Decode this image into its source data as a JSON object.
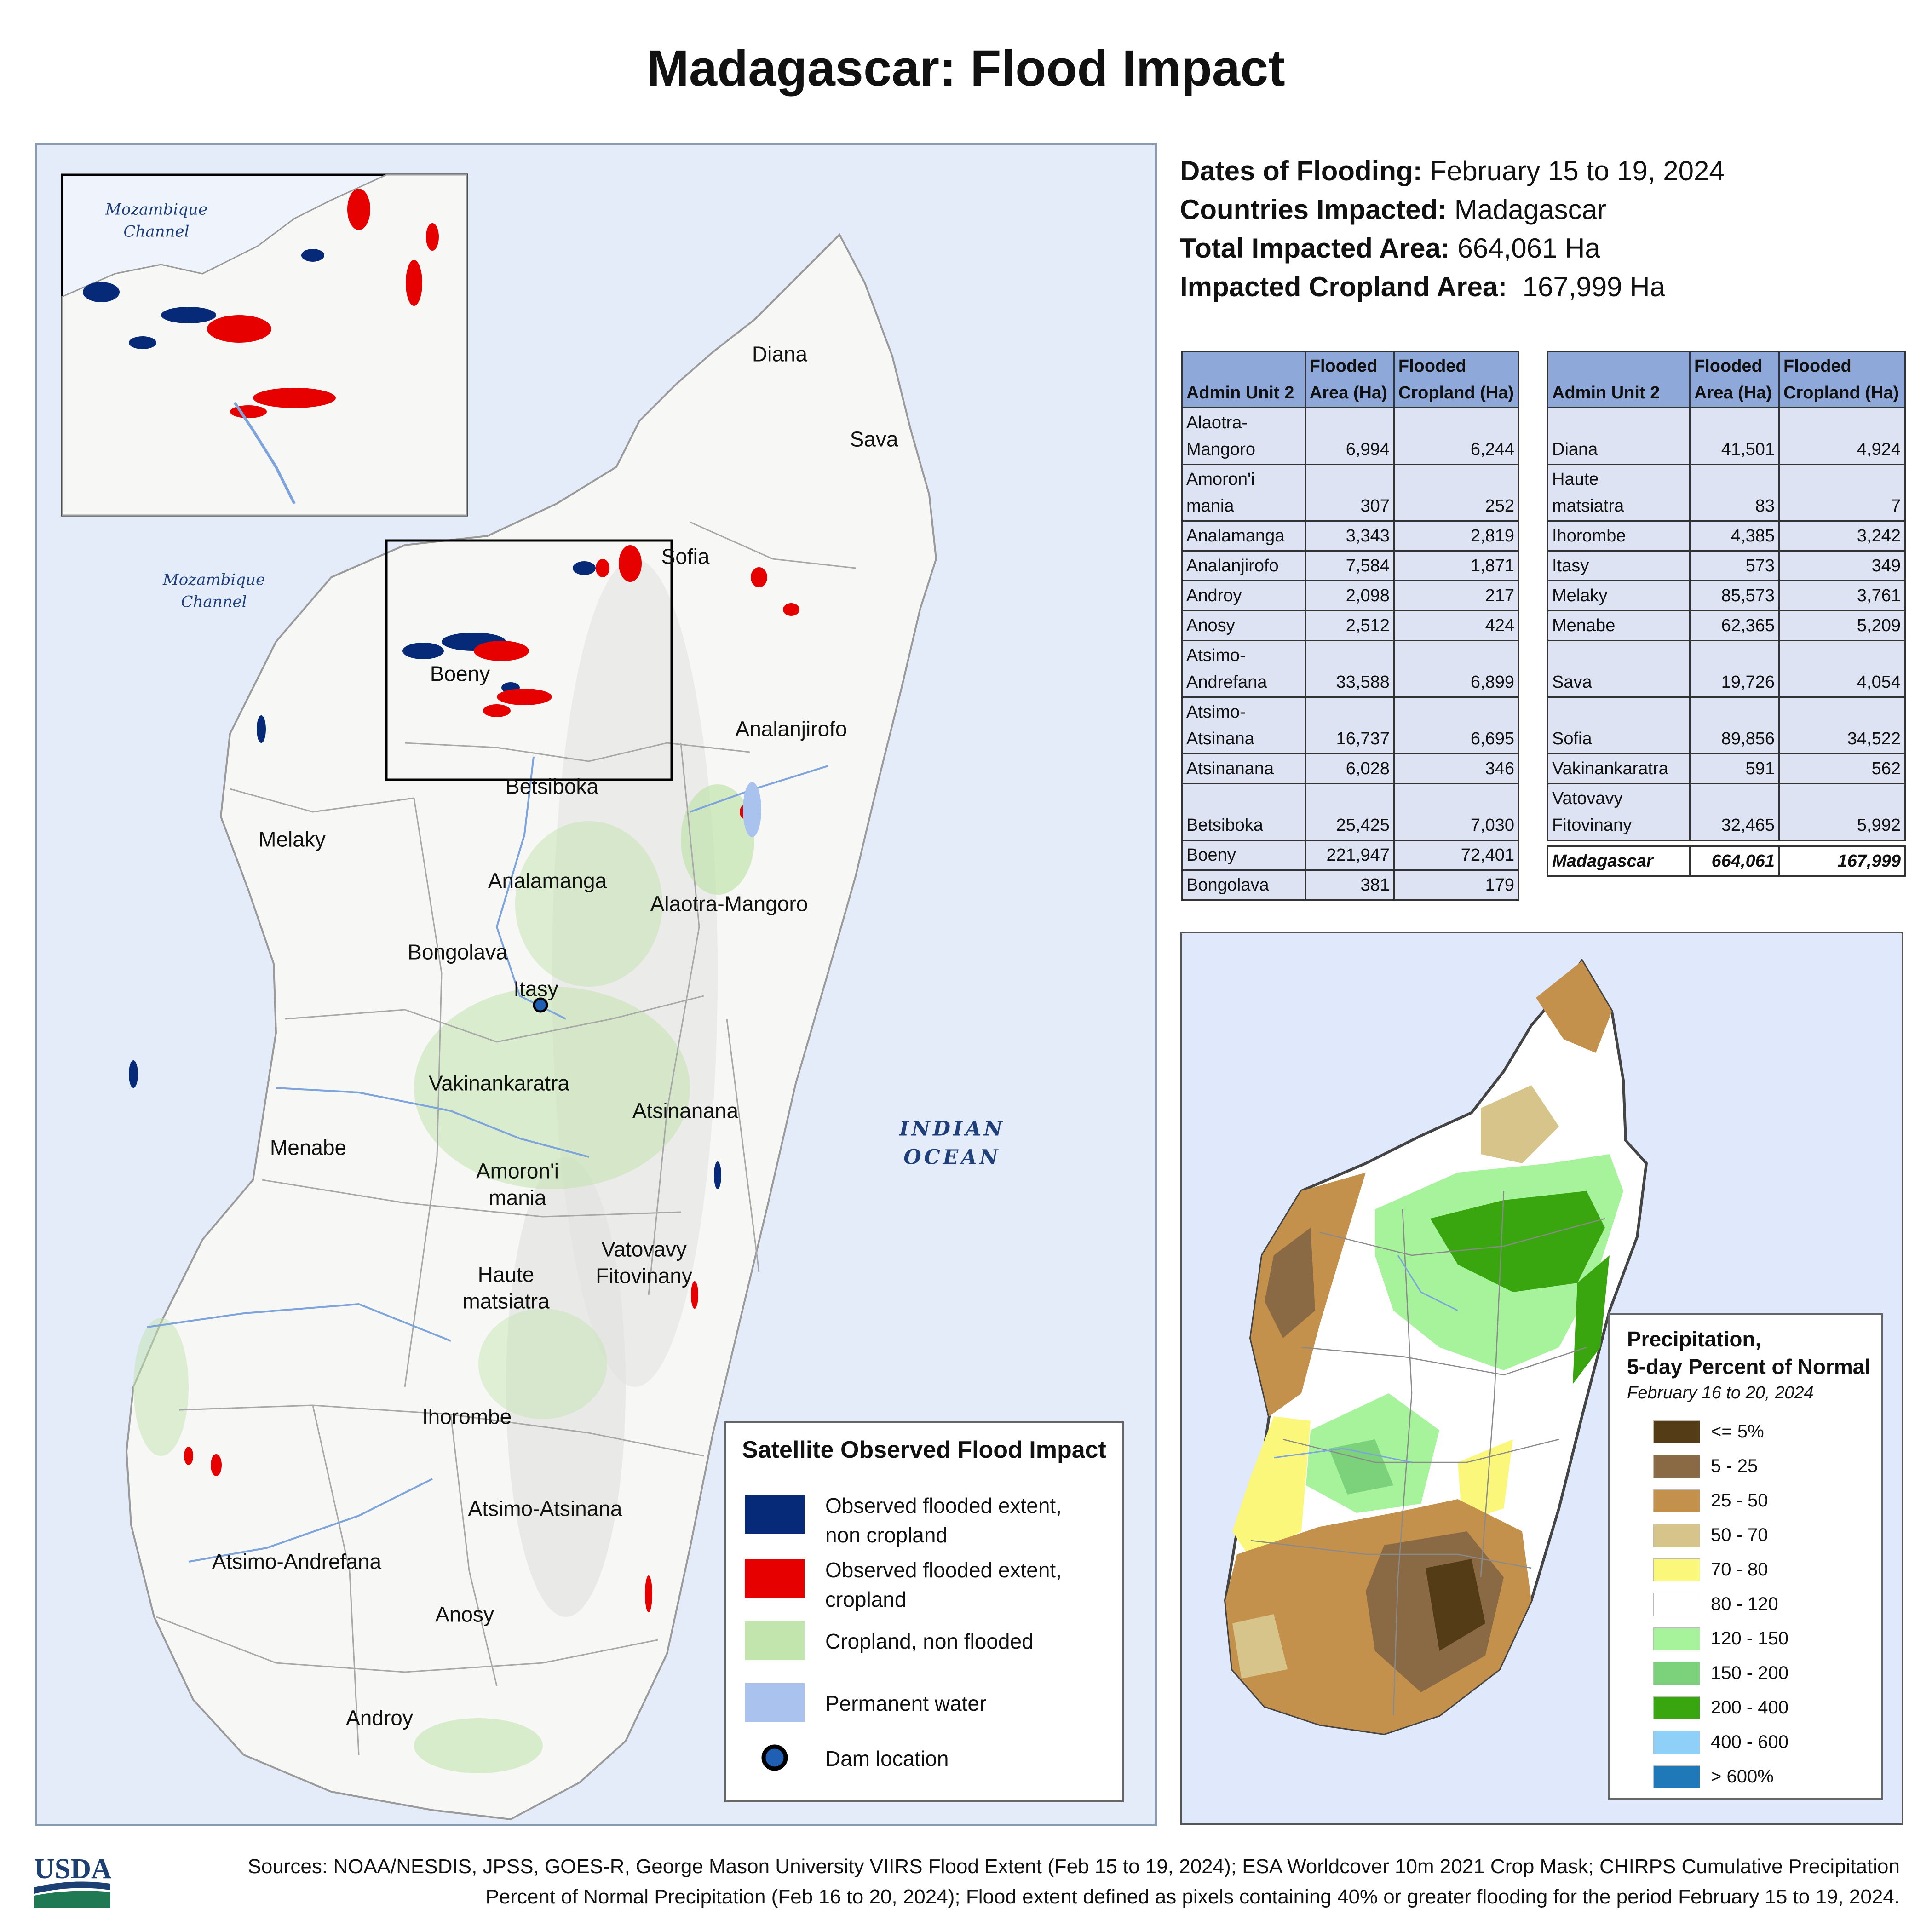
{
  "title": "Madagascar: Flood Impact",
  "info": {
    "dates_label": "Dates of Flooding:",
    "dates_value": "February 15 to 19, 2024",
    "countries_label": "Countries Impacted:",
    "countries_value": "Madagascar",
    "total_label": "Total Impacted Area:",
    "total_value": "664,061 Ha",
    "cropland_label": "Impacted Cropland Area:",
    "cropland_value": "167,999 Ha"
  },
  "table_headers": {
    "admin_unit": "Admin Unit 2",
    "flooded_area_1": "Flooded",
    "flooded_area_2": "Area (Ha)",
    "flooded_crop_1": "Flooded",
    "flooded_crop_2": "Cropland (Ha)"
  },
  "table_left": [
    {
      "name1": "Alaotra-",
      "name2": "Mangoro",
      "area": "6,994",
      "crop": "6,244"
    },
    {
      "name1": "Amoron'i",
      "name2": "mania",
      "area": "307",
      "crop": "252"
    },
    {
      "name1": "",
      "name2": "Analamanga",
      "area": "3,343",
      "crop": "2,819"
    },
    {
      "name1": "",
      "name2": "Analanjirofo",
      "area": "7,584",
      "crop": "1,871"
    },
    {
      "name1": "",
      "name2": "Androy",
      "area": "2,098",
      "crop": "217"
    },
    {
      "name1": "",
      "name2": "Anosy",
      "area": "2,512",
      "crop": "424"
    },
    {
      "name1": "Atsimo-",
      "name2": "Andrefana",
      "area": "33,588",
      "crop": "6,899"
    },
    {
      "name1": "Atsimo-",
      "name2": "Atsinana",
      "area": "16,737",
      "crop": "6,695"
    },
    {
      "name1": "",
      "name2": "Atsinanana",
      "area": "6,028",
      "crop": "346"
    },
    {
      "name1": " ",
      "name2": "Betsiboka",
      "area": "25,425",
      "crop": "7,030"
    },
    {
      "name1": "",
      "name2": "Boeny",
      "area": "221,947",
      "crop": "72,401"
    },
    {
      "name1": "",
      "name2": "Bongolava",
      "area": "381",
      "crop": "179"
    }
  ],
  "table_right": [
    {
      "name1": " ",
      "name2": "Diana",
      "area": "41,501",
      "crop": "4,924"
    },
    {
      "name1": "Haute",
      "name2": "matsiatra",
      "area": "83",
      "crop": "7"
    },
    {
      "name1": "",
      "name2": "Ihorombe",
      "area": "4,385",
      "crop": "3,242"
    },
    {
      "name1": "",
      "name2": "Itasy",
      "area": "573",
      "crop": "349"
    },
    {
      "name1": "",
      "name2": "Melaky",
      "area": "85,573",
      "crop": "3,761"
    },
    {
      "name1": "",
      "name2": "Menabe",
      "area": "62,365",
      "crop": "5,209"
    },
    {
      "name1": " ",
      "name2": "Sava",
      "area": "19,726",
      "crop": "4,054"
    },
    {
      "name1": " ",
      "name2": "Sofia",
      "area": "89,856",
      "crop": "34,522"
    },
    {
      "name1": "",
      "name2": "Vakinankaratra",
      "area": "591",
      "crop": "562"
    },
    {
      "name1": "Vatovavy",
      "name2": "Fitovinany",
      "area": "32,465",
      "crop": "5,992"
    }
  ],
  "table_total": {
    "name": "Madagascar",
    "area": "664,061",
    "crop": "167,999"
  },
  "map": {
    "ocean_label": "INDIAN OCEAN",
    "channel_label_1": "Mozambique",
    "channel_label_2": "Channel",
    "regions": [
      {
        "key": "diana",
        "text": "Diana"
      },
      {
        "key": "sava",
        "text": "Sava"
      },
      {
        "key": "sofia",
        "text": "Sofia"
      },
      {
        "key": "boeny",
        "text": "Boeny"
      },
      {
        "key": "analanjirofo",
        "text": "Analanjirofo"
      },
      {
        "key": "betsiboka",
        "text": "Betsiboka"
      },
      {
        "key": "melaky",
        "text": "Melaky"
      },
      {
        "key": "analamanga",
        "text": "Analamanga"
      },
      {
        "key": "alaotra",
        "text": "Alaotra-Mangoro"
      },
      {
        "key": "bongolava",
        "text": "Bongolava"
      },
      {
        "key": "itasy",
        "text": "Itasy"
      },
      {
        "key": "vakinankaratra",
        "text": "Vakinankaratra"
      },
      {
        "key": "atsinanana",
        "text": "Atsinanana"
      },
      {
        "key": "menabe",
        "text": "Menabe"
      },
      {
        "key": "amoroni",
        "text": "Amoron'i\nmania"
      },
      {
        "key": "vatovavy",
        "text": "Vatovavy\nFitovinany"
      },
      {
        "key": "haute",
        "text": "Haute\nmatsiatra"
      },
      {
        "key": "ihorombe",
        "text": "Ihorombe"
      },
      {
        "key": "atsimoatsinana",
        "text": "Atsimo-Atsinana"
      },
      {
        "key": "atsimoandrefana",
        "text": "Atsimo-Andrefana"
      },
      {
        "key": "anosy",
        "text": "Anosy"
      },
      {
        "key": "androy",
        "text": "Androy"
      }
    ]
  },
  "flood_legend": {
    "title": "Satellite Observed Flood Impact",
    "items": [
      {
        "label1": "Observed flooded extent,",
        "label2": "non cropland",
        "color": "#062a78"
      },
      {
        "label1": "Observed flooded extent,",
        "label2": "cropland",
        "color": "#e60000"
      },
      {
        "label1": "Cropland, non flooded",
        "label2": "",
        "color": "#c2e4ad"
      },
      {
        "label1": "Permanent water",
        "label2": "",
        "color": "#a9c3ee"
      },
      {
        "label1": "Dam location",
        "label2": "",
        "color": "#1f5fb4"
      }
    ]
  },
  "precip_legend": {
    "title1": "Precipitation,",
    "title2": "5-day Percent of Normal",
    "subtitle": "February 16 to 20, 2024",
    "classes": [
      {
        "label": "<= 5%",
        "color": "#543c16"
      },
      {
        "label": "5 - 25",
        "color": "#8a6a44"
      },
      {
        "label": "25 - 50",
        "color": "#c4914d"
      },
      {
        "label": "50 - 70",
        "color": "#d7c48b"
      },
      {
        "label": "70 - 80",
        "color": "#fbf77a"
      },
      {
        "label": "80 - 120",
        "color": "#ffffff"
      },
      {
        "label": "120 - 150",
        "color": "#a6f39b"
      },
      {
        "label": "150 - 200",
        "color": "#7bd27b"
      },
      {
        "label": "200 - 400",
        "color": "#3aa60f"
      },
      {
        "label": "400 - 600",
        "color": "#8ed0f7"
      },
      {
        "label": "> 600%",
        "color": "#1f78b8"
      }
    ]
  },
  "logo": {
    "text": "USDA"
  },
  "sources": {
    "line1": "Sources: NOAA/NESDIS, JPSS, GOES-R, George Mason University VIIRS Flood Extent (Feb 15 to 19, 2024); ESA Worldcover 10m 2021 Crop Mask; CHIRPS Cumulative Precipitation",
    "line2": "Percent of Normal Precipitation (Feb 16 to 20, 2024); Flood extent defined as pixels containing 40% or greater flooding for the period February 15 to 19, 2024."
  }
}
